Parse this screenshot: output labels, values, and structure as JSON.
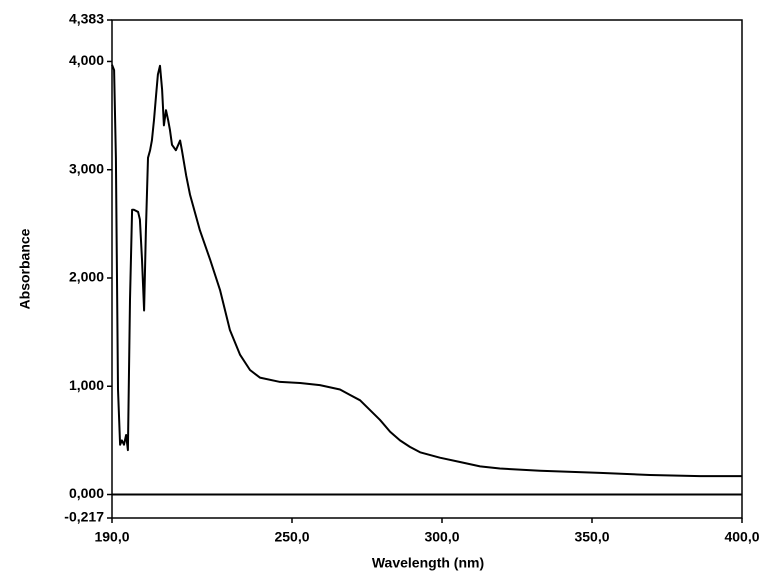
{
  "chart_data": {
    "type": "line",
    "x_label": "Wavelength (nm)",
    "y_label": "Absorbance",
    "x": [
      190,
      190.7,
      191.3,
      192,
      192.7,
      193.3,
      194,
      194.7,
      195.3,
      196,
      196.7,
      197.3,
      198.7,
      199.3,
      200,
      200.7,
      201.3,
      202,
      202.7,
      203.3,
      204,
      204.7,
      205.3,
      206,
      206.7,
      207.3,
      208,
      208.7,
      209.3,
      210,
      211.3,
      212.7,
      213.3,
      214.7,
      216,
      219.3,
      222.7,
      226,
      229.3,
      232.7,
      236,
      239.3,
      246,
      252.7,
      259.3,
      266,
      269.3,
      272.7,
      276,
      279.3,
      282.7,
      286,
      289.3,
      292.7,
      299.3,
      306,
      312.7,
      319.3,
      332.7,
      352.7,
      369.3,
      386,
      400
    ],
    "series": [
      {
        "name": "Absorbance",
        "color": "#000000",
        "values": [
          3.97,
          3.92,
          3.11,
          0.97,
          0.46,
          0.5,
          0.46,
          0.55,
          0.41,
          1.8,
          2.63,
          2.63,
          2.61,
          2.54,
          2.17,
          1.7,
          2.44,
          3.11,
          3.18,
          3.27,
          3.46,
          3.69,
          3.88,
          3.96,
          3.74,
          3.41,
          3.55,
          3.46,
          3.37,
          3.23,
          3.18,
          3.27,
          3.18,
          2.95,
          2.77,
          2.44,
          2.17,
          1.89,
          1.52,
          1.29,
          1.15,
          1.08,
          1.04,
          1.03,
          1.01,
          0.97,
          0.92,
          0.87,
          0.78,
          0.69,
          0.58,
          0.5,
          0.44,
          0.39,
          0.34,
          0.3,
          0.26,
          0.24,
          0.22,
          0.2,
          0.18,
          0.17,
          0.17
        ]
      }
    ],
    "xlim": [
      190,
      400
    ],
    "xticks": [
      {
        "value": 190,
        "label": "190,0"
      },
      {
        "value": 250,
        "label": "250,0"
      },
      {
        "value": 300,
        "label": "300,0"
      },
      {
        "value": 350,
        "label": "350,0"
      },
      {
        "value": 400,
        "label": "400,0"
      }
    ],
    "ylim": [
      -0.217,
      4.383
    ],
    "yticks": [
      {
        "value": -0.217,
        "label": "-0,217"
      },
      {
        "value": 0,
        "label": "0,000"
      },
      {
        "value": 1,
        "label": "1,000"
      },
      {
        "value": 2,
        "label": "2,000"
      },
      {
        "value": 3,
        "label": "3,000"
      },
      {
        "value": 4,
        "label": "4,000"
      },
      {
        "value": 4.383,
        "label": "4,383"
      }
    ],
    "grid": false
  }
}
